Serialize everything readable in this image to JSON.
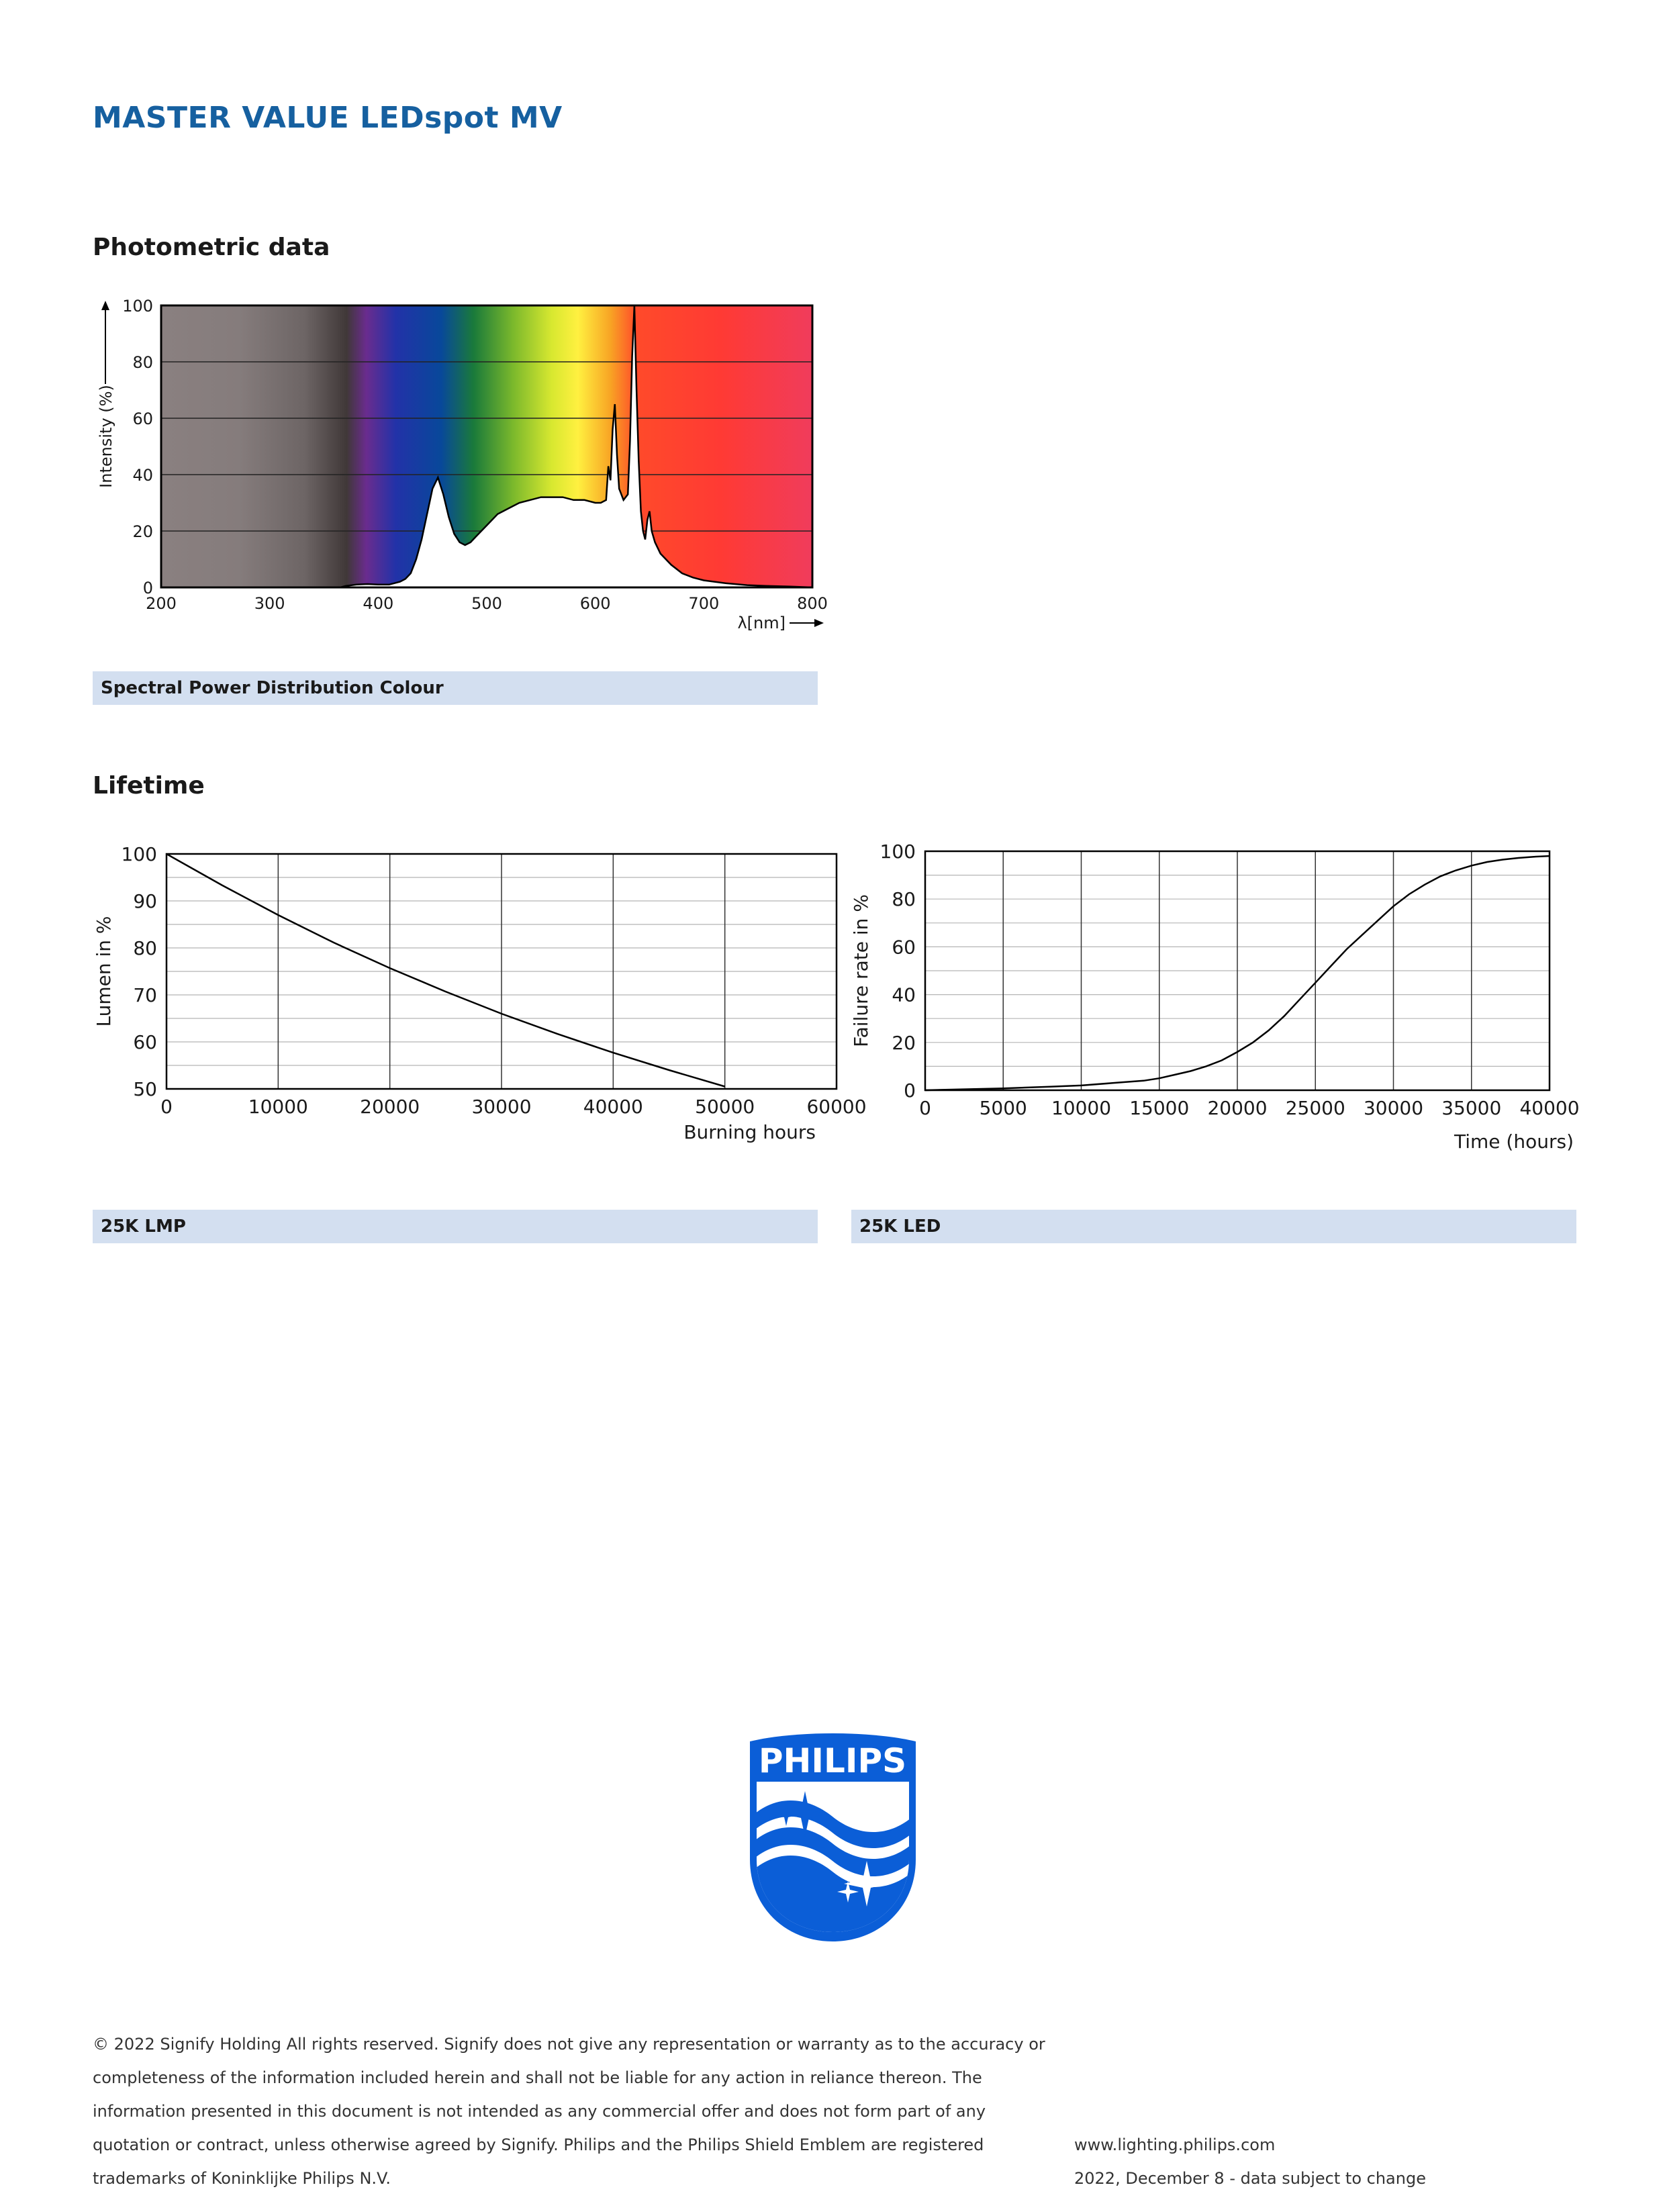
{
  "document": {
    "title": "MASTER VALUE LEDspot MV"
  },
  "sections": {
    "photometric": {
      "title": "Photometric data",
      "caption": "Spectral Power Distribution Colour"
    },
    "lifetime": {
      "title": "Lifetime",
      "caption_left": "25K LMP",
      "caption_right": "25K LED"
    }
  },
  "chart_data": [
    {
      "type": "area",
      "name": "spectral-power-distribution",
      "xlabel": "λ[nm]",
      "ylabel": "Intensity (%)",
      "xlim": [
        200,
        800
      ],
      "ylim": [
        0,
        100
      ],
      "x_ticks": [
        200,
        300,
        400,
        500,
        600,
        700,
        800
      ],
      "y_ticks": [
        0,
        20,
        40,
        60,
        80,
        100
      ],
      "grid": true,
      "background": "visible-spectrum-gradient",
      "series": [
        {
          "x": [
            365,
            370,
            380,
            390,
            400,
            410,
            420,
            425,
            430,
            435,
            440,
            445,
            450,
            455,
            460,
            465,
            470,
            475,
            480,
            485,
            490,
            495,
            500,
            510,
            520,
            530,
            540,
            550,
            560,
            570,
            580,
            590,
            600,
            605,
            610,
            612,
            614,
            616,
            618,
            620,
            622,
            624,
            626,
            628,
            630,
            632,
            634,
            636,
            638,
            640,
            642,
            644,
            646,
            648,
            650,
            652,
            655,
            660,
            670,
            680,
            690,
            700,
            720,
            740,
            760,
            780,
            800
          ],
          "values": [
            0,
            0.5,
            1,
            1.2,
            1,
            1,
            2,
            3,
            5,
            10,
            17,
            26,
            35,
            39,
            33,
            25,
            19,
            16,
            15,
            16,
            18,
            20,
            22,
            26,
            28,
            30,
            31,
            32,
            32,
            32,
            31,
            31,
            30,
            30,
            31,
            43,
            38,
            56,
            65,
            47,
            35,
            33,
            31,
            32,
            33,
            52,
            82,
            100,
            70,
            45,
            27,
            20,
            17,
            24,
            27,
            20,
            16,
            12,
            8,
            5,
            3.5,
            2.5,
            1.5,
            0.8,
            0.5,
            0.3,
            0
          ]
        }
      ]
    },
    {
      "type": "line",
      "name": "lumen-maintenance",
      "xlabel": "Burning hours",
      "ylabel": "Lumen in %",
      "xlim": [
        0,
        60000
      ],
      "ylim": [
        50,
        100
      ],
      "x_ticks": [
        0,
        10000,
        20000,
        30000,
        40000,
        50000,
        60000
      ],
      "y_ticks": [
        50,
        60,
        70,
        80,
        90,
        100
      ],
      "grid": true,
      "series": [
        {
          "x": [
            0,
            5000,
            10000,
            15000,
            20000,
            25000,
            30000,
            35000,
            40000,
            45000,
            50000
          ],
          "values": [
            100,
            93.3,
            87,
            81.1,
            75.7,
            70.7,
            66,
            61.7,
            57.7,
            54,
            50.5
          ]
        }
      ]
    },
    {
      "type": "line",
      "name": "failure-rate",
      "xlabel": "Time (hours)",
      "ylabel": "Failure rate in %",
      "xlim": [
        0,
        40000
      ],
      "ylim": [
        0,
        100
      ],
      "x_ticks": [
        0,
        5000,
        10000,
        15000,
        20000,
        25000,
        30000,
        35000,
        40000
      ],
      "y_ticks": [
        0,
        20,
        40,
        60,
        80,
        100
      ],
      "grid": true,
      "series": [
        {
          "x": [
            0,
            2000,
            5000,
            8000,
            10000,
            12000,
            14000,
            15000,
            16000,
            17000,
            18000,
            19000,
            20000,
            21000,
            22000,
            23000,
            24000,
            25000,
            26000,
            27000,
            28000,
            29000,
            30000,
            31000,
            32000,
            33000,
            34000,
            35000,
            36000,
            37000,
            38000,
            39000,
            40000
          ],
          "values": [
            0,
            0.3,
            0.8,
            1.5,
            2,
            3,
            4,
            5,
            6.5,
            8,
            10,
            12.5,
            16,
            20,
            25,
            31,
            38,
            45,
            52,
            59,
            65,
            71,
            77,
            82,
            86,
            89.5,
            92,
            94,
            95.5,
            96.5,
            97.2,
            97.7,
            98
          ]
        }
      ]
    }
  ],
  "logo": {
    "text": "PHILIPS",
    "color": "#0b5ed7"
  },
  "footer": {
    "legal_lines": [
      "© 2022 Signify Holding All rights reserved. Signify does not give any representation or warranty as to the accuracy or",
      "completeness of the information included herein and shall not be liable for any action in reliance thereon. The",
      "information presented in this document is not intended as any commercial offer and does not form part of any",
      "quotation or contract, unless otherwise agreed by Signify. Philips and the Philips Shield Emblem are registered",
      "trademarks of Koninklijke Philips N.V."
    ],
    "website": "www.lighting.philips.com",
    "date_note": "2022, December 8 - data subject to change"
  }
}
